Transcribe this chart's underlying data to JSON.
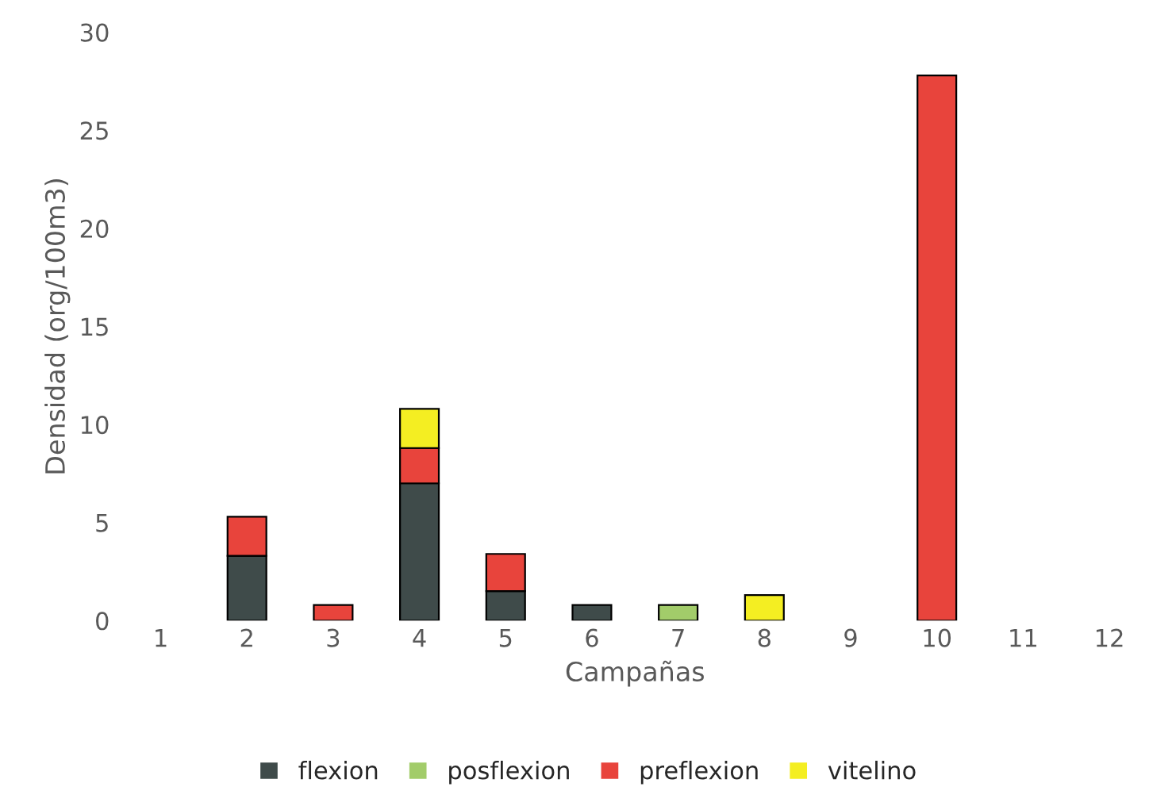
{
  "chart_data": {
    "type": "bar",
    "stacked": true,
    "xlabel": "Campañas",
    "ylabel": "Densidad (org/100m3)",
    "categories": [
      "1",
      "2",
      "3",
      "4",
      "5",
      "6",
      "7",
      "8",
      "9",
      "10",
      "11",
      "12"
    ],
    "series": [
      {
        "name": "flexion",
        "color": "#3f4b4a",
        "values": [
          0,
          3.3,
          0,
          7.0,
          1.5,
          0.8,
          0,
          0,
          0,
          0,
          0,
          0
        ]
      },
      {
        "name": "posflexion",
        "color": "#a2cc6a",
        "values": [
          0,
          0,
          0,
          0,
          0,
          0,
          0.8,
          0,
          0,
          0,
          0,
          0
        ]
      },
      {
        "name": "preflexion",
        "color": "#e8443c",
        "values": [
          0,
          2.0,
          0.8,
          1.8,
          1.9,
          0,
          0,
          0,
          0,
          27.8,
          0,
          0
        ]
      },
      {
        "name": "vitelino",
        "color": "#f4ee22",
        "values": [
          0,
          0,
          0,
          2.0,
          0,
          0,
          0,
          1.3,
          0,
          0,
          0,
          0
        ]
      }
    ],
    "ylim": [
      0,
      30
    ],
    "yticks": [
      0,
      5,
      10,
      15,
      20,
      25,
      30
    ],
    "grid": false,
    "legend": "bottom"
  }
}
